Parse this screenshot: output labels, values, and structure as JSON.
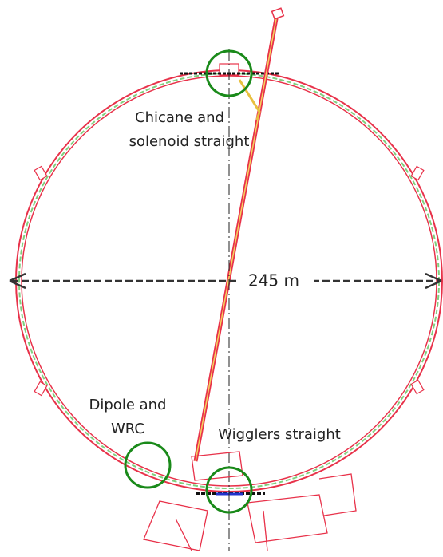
{
  "dimension": "245 m",
  "annotations": [
    {
      "lines": [
        "Chicane and",
        "solenoid straight"
      ]
    },
    {
      "lines": [
        "Dipole and",
        "WRC"
      ]
    },
    {
      "lines": [
        "Wigglers straight"
      ]
    }
  ]
}
